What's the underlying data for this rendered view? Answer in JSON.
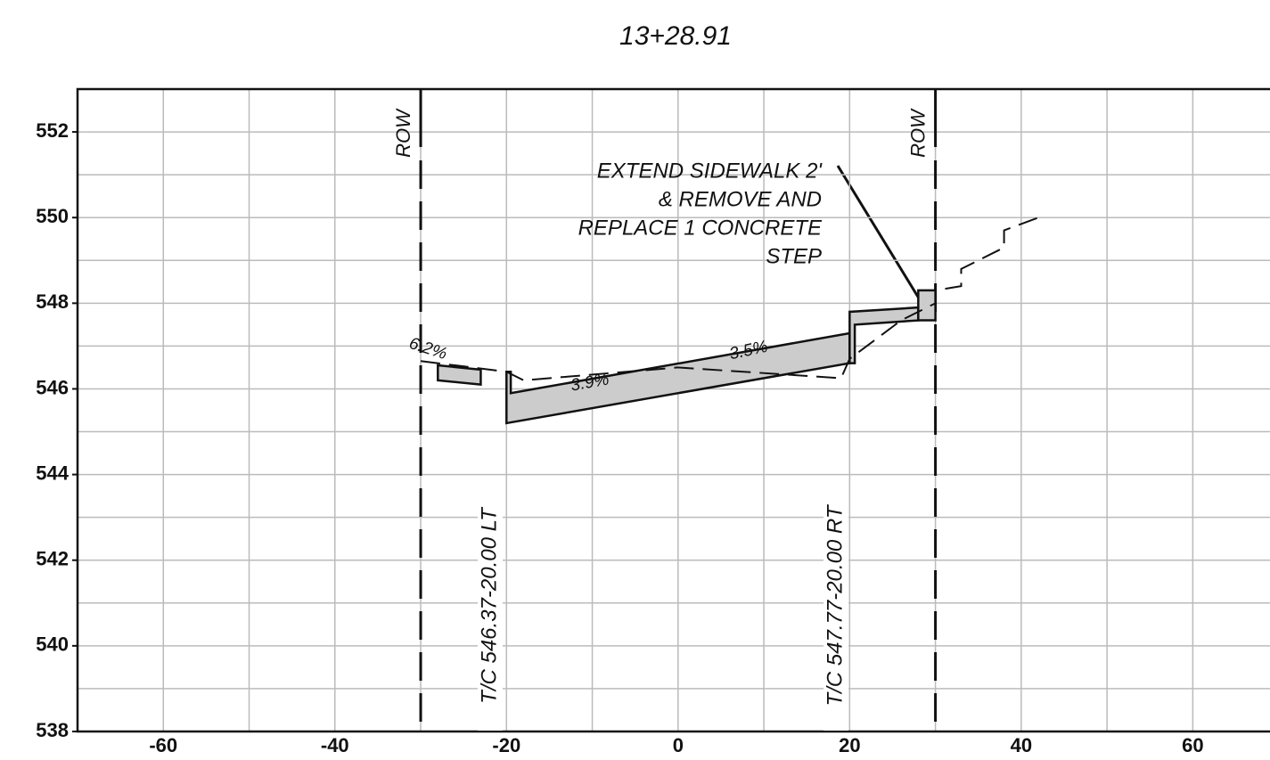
{
  "chart_data": {
    "type": "line",
    "title": "13+28.91",
    "xlim": [
      -70,
      69
    ],
    "ylim": [
      538,
      553
    ],
    "xticks": [
      -60,
      -40,
      -20,
      0,
      20,
      40,
      60
    ],
    "yticks": [
      538,
      540,
      542,
      544,
      546,
      548,
      550,
      552
    ],
    "xgrid_minor": [
      -50,
      -30,
      -10,
      10,
      30,
      50
    ],
    "ygrid_minor": [
      539,
      541,
      543,
      545,
      547,
      549,
      551,
      553
    ],
    "grid": true,
    "ground": {
      "x": [
        -30,
        -26,
        -20,
        -18,
        0,
        19,
        20,
        26,
        30,
        30,
        33,
        33,
        38,
        38,
        42
      ],
      "y": [
        546.65,
        546.55,
        546.4,
        546.2,
        546.5,
        546.25,
        546.7,
        547.6,
        548.0,
        548.3,
        548.4,
        548.8,
        549.3,
        549.7,
        550.0
      ]
    },
    "sections": [
      {
        "x": [
          -28,
          -23,
          -23,
          -28
        ],
        "y": [
          546.55,
          546.45,
          546.1,
          546.2
        ]
      },
      {
        "x": [
          -20,
          -19.5,
          -19.5,
          20,
          20,
          -20
        ],
        "y": [
          546.4,
          546.4,
          545.9,
          547.3,
          546.6,
          545.2
        ]
      },
      {
        "x": [
          20,
          20,
          28,
          28,
          20.6,
          20.6
        ],
        "y": [
          546.6,
          547.8,
          547.9,
          547.6,
          547.5,
          546.6
        ]
      },
      {
        "x": [
          28,
          28,
          30,
          30
        ],
        "y": [
          547.6,
          548.3,
          548.3,
          547.6
        ]
      }
    ],
    "row_lines": [
      -30,
      30
    ],
    "row_label": "ROW",
    "tc_labels": [
      "T/C 546.37-20.00 LT",
      "T/C 547.77-20.00 RT"
    ],
    "slopes": [
      "6.2%",
      "3.9%",
      "3.5%"
    ],
    "note": [
      "EXTEND SIDEWALK 2'",
      "& REMOVE AND",
      "REPLACE 1 CONCRETE",
      "STEP"
    ]
  }
}
